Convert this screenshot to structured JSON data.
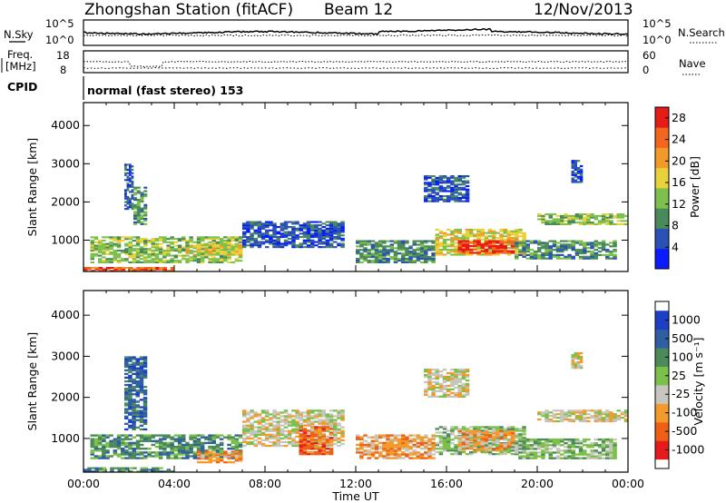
{
  "header": {
    "station": "Zhongshan Station (fitACF)",
    "beam": "Beam 12",
    "date": "12/Nov/2013"
  },
  "top_panels": {
    "nsky_label": "N.Sky",
    "nsky_hi": "10^5",
    "nsky_lo": "10^0",
    "nsearch_label": "N.Search",
    "nsearch_hi": "10^5",
    "nsearch_lo": "10^0",
    "freq_label": "Freq.",
    "freq_unit": "[MHz]",
    "freq_hi": "18",
    "freq_lo": "8",
    "nave_label": "Nave",
    "nave_hi": "60",
    "nave_lo": "0",
    "cpid_label": "CPID",
    "cpid_text": "normal (fast stereo) 153"
  },
  "colors": {
    "power": [
      "#0a1cff",
      "#2a52b5",
      "#4a8a5a",
      "#7dc04d",
      "#e8d13a",
      "#f19a28",
      "#f2661e",
      "#e51b17"
    ],
    "velocity": [
      "#e41a1c",
      "#ef5f16",
      "#f39a2c",
      "#c8c6bc",
      "#7bc04a",
      "#4c8a5a",
      "#2e5fa5",
      "#1c3fc6"
    ]
  },
  "chart_data": [
    {
      "type": "heatmap",
      "ylabel": "Slant Range [km]",
      "xlabel": "Time UT",
      "x_ticks": [
        "00:00",
        "04:00",
        "08:00",
        "12:00",
        "16:00",
        "20:00",
        "00:00"
      ],
      "y_ticks": [
        "1000",
        "2000",
        "3000",
        "4000"
      ],
      "ylim": [
        180,
        4600
      ],
      "colorbar": {
        "label": "Power [dB]",
        "ticks": [
          "4",
          "8",
          "12",
          "16",
          "20",
          "24",
          "28"
        ],
        "range": [
          0,
          30
        ]
      },
      "regions": [
        {
          "t0": 0.0,
          "t1": 4.0,
          "r0": 180,
          "r1": 300,
          "level": 6
        },
        {
          "t0": 0.3,
          "t1": 7.0,
          "r0": 400,
          "r1": 1100,
          "level": 3
        },
        {
          "t0": 4.5,
          "t1": 7.0,
          "r0": 600,
          "r1": 900,
          "level": 4
        },
        {
          "t0": 2.2,
          "t1": 2.8,
          "r0": 1400,
          "r1": 2400,
          "level": 2
        },
        {
          "t0": 1.8,
          "t1": 2.2,
          "r0": 1800,
          "r1": 3000,
          "level": 1
        },
        {
          "t0": 7.0,
          "t1": 11.5,
          "r0": 800,
          "r1": 1500,
          "level": 1
        },
        {
          "t0": 12.0,
          "t1": 15.5,
          "r0": 400,
          "r1": 1000,
          "level": 2
        },
        {
          "t0": 15.5,
          "t1": 19.5,
          "r0": 600,
          "r1": 1300,
          "level": 4
        },
        {
          "t0": 16.5,
          "t1": 19.0,
          "r0": 650,
          "r1": 1000,
          "level": 7
        },
        {
          "t0": 19.0,
          "t1": 23.5,
          "r0": 500,
          "r1": 1000,
          "level": 2
        },
        {
          "t0": 20.0,
          "t1": 24.0,
          "r0": 1400,
          "r1": 1700,
          "level": 3
        },
        {
          "t0": 15.0,
          "t1": 17.0,
          "r0": 2000,
          "r1": 2700,
          "level": 1
        },
        {
          "t0": 21.5,
          "t1": 22.0,
          "r0": 2500,
          "r1": 3100,
          "level": 1
        }
      ]
    },
    {
      "type": "heatmap",
      "ylabel": "Slant Range [km]",
      "xlabel": "Time UT",
      "x_ticks": [
        "00:00",
        "04:00",
        "08:00",
        "12:00",
        "16:00",
        "20:00",
        "00:00"
      ],
      "y_ticks": [
        "1000",
        "2000",
        "3000",
        "4000"
      ],
      "ylim": [
        180,
        4600
      ],
      "colorbar": {
        "label": "Velocity [m s⁻¹]",
        "ticks": [
          "-1000",
          "-500",
          "-100",
          "-25",
          "25",
          "100",
          "500",
          "1000"
        ]
      },
      "regions": [
        {
          "t0": 0.0,
          "t1": 4.0,
          "r0": 180,
          "r1": 300,
          "level": 5
        },
        {
          "t0": 0.3,
          "t1": 7.0,
          "r0": 500,
          "r1": 1100,
          "level": 5
        },
        {
          "t0": 1.8,
          "t1": 2.8,
          "r0": 1200,
          "r1": 3000,
          "level": 6
        },
        {
          "t0": 5.0,
          "t1": 7.0,
          "r0": 400,
          "r1": 700,
          "level": 2
        },
        {
          "t0": 7.0,
          "t1": 11.5,
          "r0": 800,
          "r1": 1700,
          "level": 3
        },
        {
          "t0": 9.5,
          "t1": 11.0,
          "r0": 600,
          "r1": 1300,
          "level": 1
        },
        {
          "t0": 12.0,
          "t1": 15.5,
          "r0": 500,
          "r1": 1100,
          "level": 2
        },
        {
          "t0": 15.5,
          "t1": 19.5,
          "r0": 600,
          "r1": 1300,
          "level": 4
        },
        {
          "t0": 16.5,
          "t1": 19.0,
          "r0": 700,
          "r1": 1200,
          "level": 2
        },
        {
          "t0": 19.0,
          "t1": 23.5,
          "r0": 500,
          "r1": 1000,
          "level": 4
        },
        {
          "t0": 20.0,
          "t1": 24.0,
          "r0": 1400,
          "r1": 1700,
          "level": 3
        },
        {
          "t0": 15.0,
          "t1": 17.0,
          "r0": 2000,
          "r1": 2700,
          "level": 3
        },
        {
          "t0": 21.5,
          "t1": 22.0,
          "r0": 2700,
          "r1": 3100,
          "level": 3
        }
      ]
    }
  ]
}
